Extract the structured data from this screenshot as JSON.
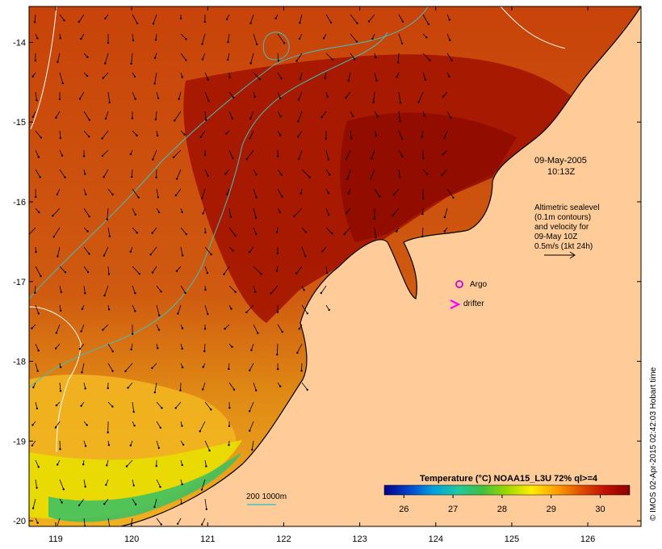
{
  "map": {
    "lon_ticks": [
      119,
      120,
      121,
      122,
      123,
      124,
      125,
      126
    ],
    "lat_ticks": [
      -14,
      -15,
      -16,
      -17,
      -18,
      -19,
      -20
    ],
    "lon_range": [
      118.65,
      126.7
    ],
    "lat_range": [
      -20.07,
      -13.55
    ]
  },
  "timestamp": {
    "date": "09-May-2005",
    "time": "10:13Z"
  },
  "altimetry_note": {
    "line1": "Altimetric sealevel",
    "line2": "(0.1m contours)",
    "line3": "and velocity for",
    "line4": "09-May 10Z",
    "line5": "0.5m/s (1kt 24h)"
  },
  "legend": {
    "argo_label": "Argo",
    "drifter_label": "drifter",
    "argo_color": "#cc00cc",
    "drifter_color": "#ff00ff"
  },
  "isobath_label": "200  1000m",
  "colorbar": {
    "title": "Temperature (°C) NOAA15_L3U 72% ql>=4",
    "ticks": [
      "26",
      "27",
      "28",
      "29",
      "30"
    ],
    "range": [
      25.6,
      30.6
    ],
    "colors": [
      "#00008b",
      "#0044cc",
      "#00a0e0",
      "#20c8a0",
      "#40c040",
      "#a0d800",
      "#ffee00",
      "#ffa000",
      "#e05000",
      "#c01000",
      "#8b0000"
    ]
  },
  "credit": "© IMOS 02-Apr-2015 02:42:03 Hobart time",
  "colors": {
    "land": "#ffcc99",
    "sea_warm": "#c23a08",
    "sea_hot": "#9a0f00",
    "sea_mid": "#d96512",
    "contour": "#40c0c0"
  }
}
